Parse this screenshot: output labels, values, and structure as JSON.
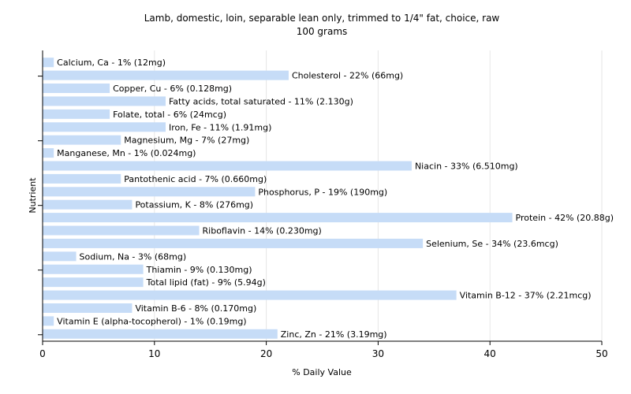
{
  "chart_data": {
    "type": "bar",
    "orientation": "horizontal",
    "title": "Lamb, domestic, loin, separable lean only, trimmed to 1/4\" fat, choice, raw",
    "subtitle": "100 grams",
    "xlabel": "% Daily Value",
    "ylabel": "Nutrient",
    "xlim": [
      0,
      50
    ],
    "xticks": [
      "0",
      "10",
      "20",
      "30",
      "40",
      "50"
    ],
    "grid": "vertical",
    "bar_color": "#c6dcf7",
    "categories": [
      "Calcium, Ca",
      "Cholesterol",
      "Copper, Cu",
      "Fatty acids, total saturated",
      "Folate, total",
      "Iron, Fe",
      "Magnesium, Mg",
      "Manganese, Mn",
      "Niacin",
      "Pantothenic acid",
      "Phosphorus, P",
      "Potassium, K",
      "Protein",
      "Riboflavin",
      "Selenium, Se",
      "Sodium, Na",
      "Thiamin",
      "Total lipid (fat)",
      "Vitamin B-12",
      "Vitamin B-6",
      "Vitamin E (alpha-tocopherol)",
      "Zinc, Zn"
    ],
    "values": [
      1,
      22,
      6,
      11,
      6,
      11,
      7,
      1,
      33,
      7,
      19,
      8,
      42,
      14,
      34,
      3,
      9,
      9,
      37,
      8,
      1,
      21
    ],
    "labels": [
      "Calcium, Ca - 1% (12mg)",
      "Cholesterol - 22% (66mg)",
      "Copper, Cu - 6% (0.128mg)",
      "Fatty acids, total saturated - 11% (2.130g)",
      "Folate, total - 6% (24mcg)",
      "Iron, Fe - 11% (1.91mg)",
      "Magnesium, Mg - 7% (27mg)",
      "Manganese, Mn - 1% (0.024mg)",
      "Niacin - 33% (6.510mg)",
      "Pantothenic acid - 7% (0.660mg)",
      "Phosphorus, P - 19% (190mg)",
      "Potassium, K - 8% (276mg)",
      "Protein - 42% (20.88g)",
      "Riboflavin - 14% (0.230mg)",
      "Selenium, Se - 34% (23.6mcg)",
      "Sodium, Na - 3% (68mg)",
      "Thiamin - 9% (0.130mg)",
      "Total lipid (fat) - 9% (5.94g)",
      "Vitamin B-12 - 37% (2.21mcg)",
      "Vitamin B-6 - 8% (0.170mg)",
      "Vitamin E (alpha-tocopherol) - 1% (0.19mg)",
      "Zinc, Zn - 21% (3.19mg)"
    ]
  }
}
